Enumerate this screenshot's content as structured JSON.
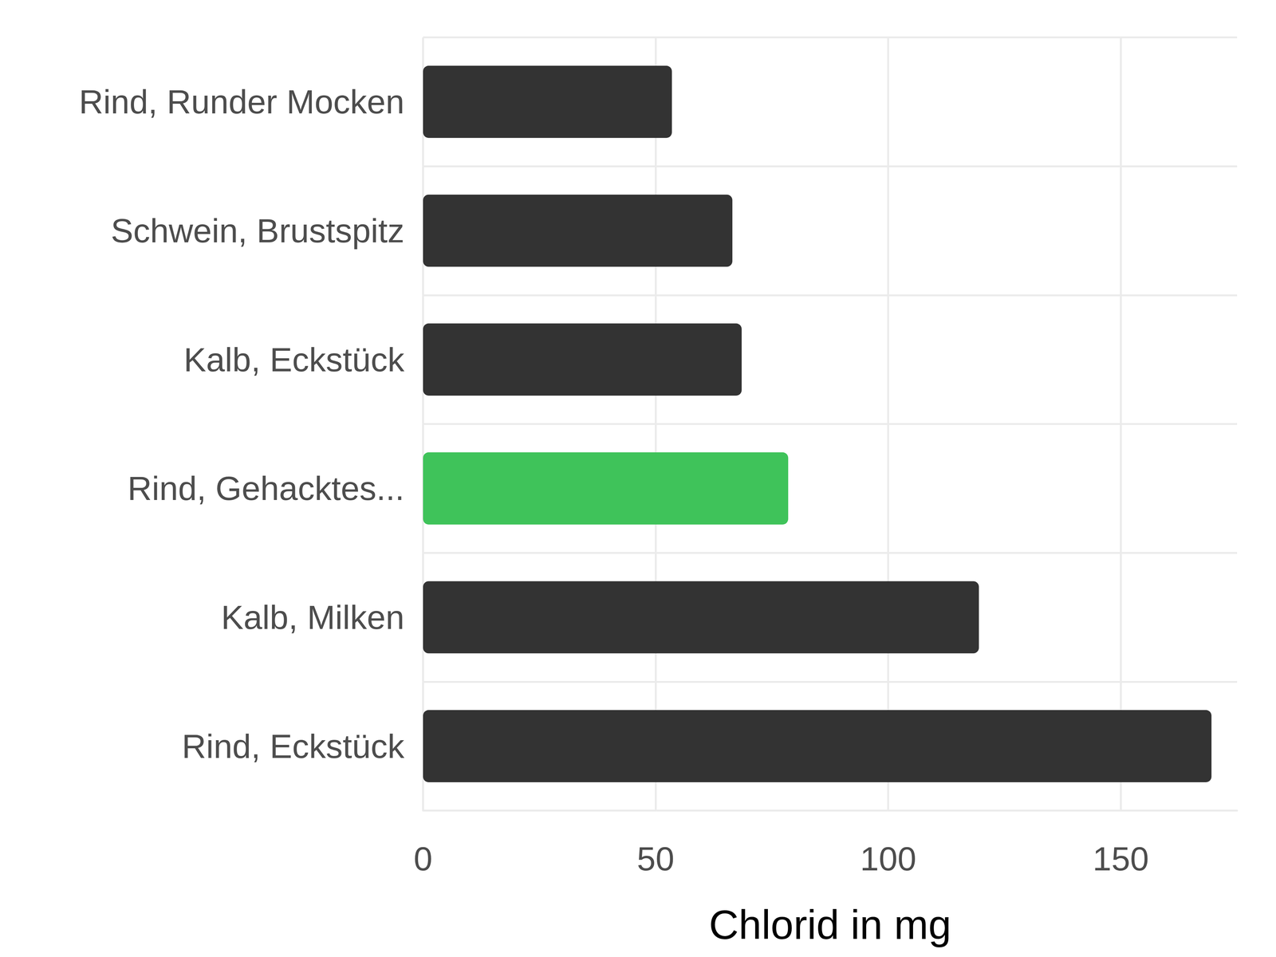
{
  "chart_data": {
    "type": "bar",
    "orientation": "horizontal",
    "categories": [
      "Rind, Runder Mocken",
      "Schwein, Brustspitz",
      "Kalb, Eckstück",
      "Rind, Gehacktes...",
      "Kalb, Milken",
      "Rind, Eckstück"
    ],
    "values": [
      53.5,
      66.5,
      68.5,
      78.5,
      119.5,
      169.5
    ],
    "colors": [
      "#333333",
      "#333333",
      "#333333",
      "#3fc35a",
      "#333333",
      "#333333"
    ],
    "xlabel": "Chlorid in mg",
    "xlim": [
      0,
      175
    ],
    "xticks": [
      0,
      50,
      100,
      150
    ],
    "grid": true
  }
}
